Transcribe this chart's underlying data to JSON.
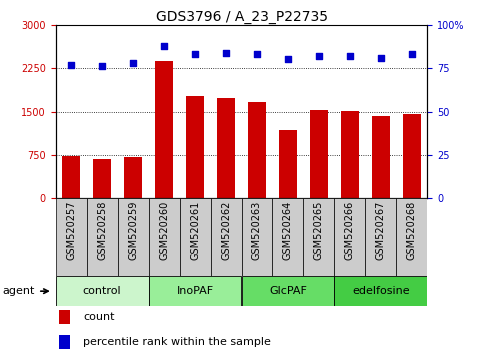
{
  "title": "GDS3796 / A_23_P22735",
  "samples": [
    "GSM520257",
    "GSM520258",
    "GSM520259",
    "GSM520260",
    "GSM520261",
    "GSM520262",
    "GSM520263",
    "GSM520264",
    "GSM520265",
    "GSM520266",
    "GSM520267",
    "GSM520268"
  ],
  "counts": [
    730,
    680,
    720,
    2380,
    1760,
    1740,
    1660,
    1180,
    1530,
    1510,
    1430,
    1460
  ],
  "percentile_ranks": [
    77,
    76,
    78,
    88,
    83,
    84,
    83,
    80,
    82,
    82,
    81,
    83
  ],
  "bar_color": "#cc0000",
  "dot_color": "#0000cc",
  "left_ylim": [
    0,
    3000
  ],
  "left_yticks": [
    0,
    750,
    1500,
    2250,
    3000
  ],
  "right_ylim": [
    0,
    100
  ],
  "right_yticks": [
    0,
    25,
    50,
    75,
    100
  ],
  "right_yticklabels": [
    "0",
    "25",
    "50",
    "75",
    "100%"
  ],
  "groups": [
    {
      "label": "control",
      "start": 0,
      "end": 2,
      "color": "#ccf5cc"
    },
    {
      "label": "InoPAF",
      "start": 3,
      "end": 5,
      "color": "#99ee99"
    },
    {
      "label": "GlcPAF",
      "start": 6,
      "end": 8,
      "color": "#66dd66"
    },
    {
      "label": "edelfosine",
      "start": 9,
      "end": 11,
      "color": "#44cc44"
    }
  ],
  "xtick_bg_color": "#cccccc",
  "background_color": "#ffffff",
  "title_fontsize": 10,
  "tick_fontsize": 7,
  "label_fontsize": 8
}
